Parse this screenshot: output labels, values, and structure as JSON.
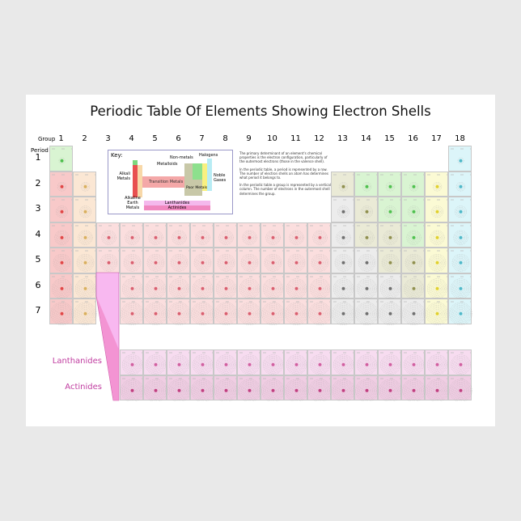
{
  "title": "Periodic Table Of Elements Showing Electron Shells",
  "group_label": "Group",
  "period_label": "Period",
  "groups": [
    "1",
    "2",
    "3",
    "4",
    "5",
    "6",
    "7",
    "8",
    "9",
    "10",
    "11",
    "12",
    "13",
    "14",
    "15",
    "16",
    "17",
    "18"
  ],
  "periods": [
    "1",
    "2",
    "3",
    "4",
    "5",
    "6",
    "7"
  ],
  "key": {
    "title": "Key:",
    "labels": {
      "alkali": "Alkali Metals",
      "alkaline": "Alkaline Earth Metals",
      "transition": "Transition Metals",
      "nonmetals": "Non-metals",
      "metalloids": "Metalloids",
      "halogens": "Halogens",
      "noble": "Noble Gases",
      "post": "Poor Metals",
      "lanthanides": "Lanthanides",
      "actinides": "Actinides"
    }
  },
  "info": [
    "The primary determinant of an element's chemical properties is the electron configuration, particularly of the outermost electrons (those in the valence shell).",
    "In the periodic table, a period is represented by a row. The number of electron shells an atom has determines what period it belongs to.",
    "In the periodic table a group is represented by a vertical column. The number of electrons in the outermost shell determines the group."
  ],
  "series": {
    "lanthanides": "Lanthanides",
    "actinides": "Actinides"
  },
  "colors": {
    "A": "#f8c9c9",
    "E": "#fbe7d4",
    "T": "#fbdede",
    "P": "#ececec",
    "M": "#eaead6",
    "N": "#d9f4d2",
    "H": "#fbfad4",
    "G": "#dcf5f9",
    "L": "#f7dcf0",
    "C": "#f0cde3"
  },
  "nucleus_colors": {
    "A": "#e04848",
    "E": "#d8b060",
    "T": "#d86070",
    "P": "#707070",
    "M": "#909050",
    "N": "#50c050",
    "H": "#e0d030",
    "G": "#50b8c8",
    "L": "#d060a0",
    "C": "#c04080"
  },
  "categories": [
    "N................G",
    "AE..........MNNNHG",
    "AE..........PMNNHG",
    "AETTTTTTTTTTPMMNHG",
    "AETTTTTTTTTTPPMMHG",
    "AE.TTTTTTTTTPPPMHG",
    "AE.TTTTTTTTTPPPPHG"
  ],
  "f_block": [
    "LLLLLLLLLLLLLLL",
    "CCCCCCCCCCCCCCC"
  ]
}
